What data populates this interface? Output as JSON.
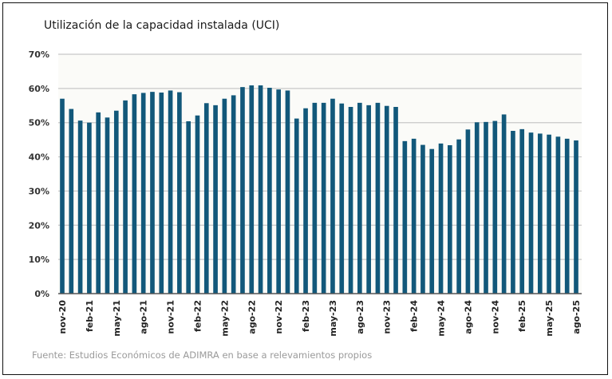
{
  "chart_data": {
    "type": "bar",
    "title": "Utilización de la capacidad instalada (UCI)",
    "xlabel": "",
    "ylabel": "",
    "ylim": [
      0,
      70
    ],
    "yticks": [
      "0%",
      "10%",
      "20%",
      "30%",
      "40%",
      "50%",
      "60%",
      "70%"
    ],
    "ytick_values": [
      0,
      10,
      20,
      30,
      40,
      50,
      60,
      70
    ],
    "grid": true,
    "legend": "none",
    "bar_color": "#12587a",
    "categories": [
      "nov-20",
      "dic-20",
      "ene-21",
      "feb-21",
      "mar-21",
      "abr-21",
      "may-21",
      "jun-21",
      "jul-21",
      "ago-21",
      "sep-21",
      "oct-21",
      "nov-21",
      "dic-21",
      "ene-22",
      "feb-22",
      "mar-22",
      "abr-22",
      "may-22",
      "jun-22",
      "jul-22",
      "ago-22",
      "sep-22",
      "oct-22",
      "nov-22",
      "dic-22",
      "ene-23",
      "feb-23",
      "mar-23",
      "abr-23",
      "may-23",
      "jun-23",
      "jul-23",
      "ago-23",
      "sep-23",
      "oct-23",
      "nov-23",
      "dic-23",
      "ene-24",
      "feb-24",
      "mar-24",
      "abr-24",
      "may-24",
      "jun-24",
      "jul-24",
      "ago-24",
      "sep-24",
      "oct-24",
      "nov-24",
      "dic-24",
      "ene-25",
      "feb-25",
      "mar-25",
      "abr-25",
      "may-25",
      "jun-25",
      "jul-25",
      "ago-25"
    ],
    "visible_xticks": [
      "nov-20",
      "feb-21",
      "may-21",
      "ago-21",
      "nov-21",
      "feb-22",
      "may-22",
      "ago-22",
      "nov-22",
      "feb-23",
      "may-23",
      "ago-23",
      "nov-23",
      "feb-24",
      "may-24",
      "ago-24",
      "nov-24",
      "feb-25",
      "may-25",
      "ago-25"
    ],
    "values": [
      57.0,
      54.0,
      50.6,
      50.0,
      53.0,
      51.5,
      53.5,
      56.5,
      58.3,
      58.7,
      59.0,
      58.8,
      59.4,
      58.9,
      50.4,
      52.1,
      55.7,
      55.1,
      57.0,
      58.0,
      60.4,
      60.9,
      60.9,
      60.2,
      59.7,
      59.4,
      51.2,
      54.2,
      55.8,
      55.8,
      57.0,
      55.6,
      54.6,
      55.8,
      55.1,
      55.8,
      54.9,
      54.6,
      44.6,
      45.3,
      43.5,
      42.3,
      43.9,
      43.4,
      45.1,
      48.0,
      50.1,
      50.2,
      50.5,
      52.4,
      47.6,
      48.1,
      47.1,
      46.8,
      46.5,
      45.9,
      45.3,
      44.8
    ],
    "unit": "%"
  },
  "source_note": "Fuente: Estudios Económicos de ADIMRA en base a relevamientos propios"
}
